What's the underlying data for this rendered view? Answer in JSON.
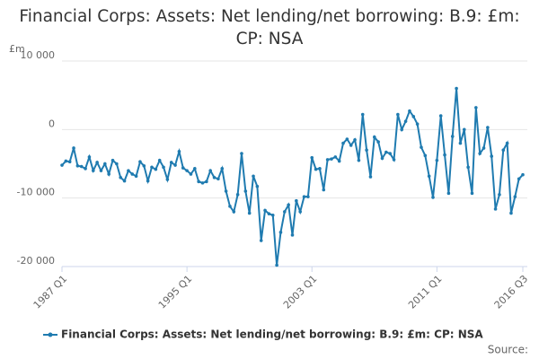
{
  "chart_data": {
    "type": "line",
    "title": "Financial Corps: Assets: Net lending/net borrowing: B.9: £m: CP: NSA",
    "y_unit": "£m",
    "source": "Source:",
    "categories": [
      "1987 Q1",
      null,
      null,
      null,
      null,
      null,
      null,
      null,
      null,
      null,
      null,
      null,
      null,
      null,
      null,
      null,
      null,
      null,
      null,
      null,
      null,
      null,
      null,
      null,
      null,
      null,
      null,
      null,
      null,
      null,
      null,
      null,
      "1995 Q1",
      null,
      null,
      null,
      null,
      null,
      null,
      null,
      null,
      null,
      null,
      null,
      null,
      null,
      null,
      null,
      null,
      null,
      null,
      null,
      null,
      null,
      null,
      null,
      null,
      null,
      null,
      null,
      null,
      null,
      null,
      null,
      "2003 Q1",
      null,
      null,
      null,
      null,
      null,
      null,
      null,
      null,
      null,
      null,
      null,
      null,
      null,
      null,
      null,
      null,
      null,
      null,
      null,
      null,
      null,
      null,
      null,
      null,
      null,
      null,
      null,
      null,
      null,
      null,
      null,
      "2011 Q1",
      null,
      null,
      null,
      null,
      null,
      null,
      null,
      null,
      null,
      null,
      null,
      null,
      null,
      null,
      null,
      null,
      null,
      null,
      null,
      null,
      null,
      "2016 Q3"
    ],
    "series": [
      {
        "name": "Financial Corps: Assets: Net lending/net borrowing: B.9: £m: CP: NSA",
        "color": "#1f7bb0",
        "values": [
          -5200,
          -4600,
          -4700,
          -2700,
          -5300,
          -5400,
          -5700,
          -4000,
          -6000,
          -4800,
          -6000,
          -5000,
          -6500,
          -4500,
          -5000,
          -7000,
          -7500,
          -6000,
          -6500,
          -6800,
          -4700,
          -5300,
          -7500,
          -5500,
          -5800,
          -4500,
          -5500,
          -7300,
          -4800,
          -5200,
          -3200,
          -5600,
          -6000,
          -6500,
          -5700,
          -7600,
          -7800,
          -7600,
          -6000,
          -7000,
          -7200,
          -5700,
          -9000,
          -11200,
          -12000,
          -9500,
          -3500,
          -9000,
          -12200,
          -6800,
          -8300,
          -16200,
          -11800,
          -12300,
          -12500,
          -19800,
          -15000,
          -12000,
          -11000,
          -15400,
          -10400,
          -12000,
          -9800,
          -9800,
          -4100,
          -5800,
          -5700,
          -8800,
          -4400,
          -4300,
          -4000,
          -4600,
          -2000,
          -1400,
          -2300,
          -1500,
          -4500,
          2200,
          -3000,
          -6900,
          -1100,
          -1800,
          -4200,
          -3300,
          -3500,
          -4400,
          2200,
          0,
          1200,
          2700,
          1900,
          800,
          -2600,
          -3800,
          -6800,
          -9900,
          -4500,
          2000,
          -3700,
          -9300,
          -1000,
          6000,
          -2000,
          0,
          -5500,
          -9300,
          3200,
          -3500,
          -2700,
          300,
          -3900,
          -11600,
          -9500,
          -3000,
          -2000,
          -12200,
          -9800,
          -7200,
          -6600
        ]
      }
    ],
    "ylim": [
      -20000,
      10000
    ],
    "yticks": [
      {
        "value": -20000,
        "label": "-20 000"
      },
      {
        "value": -10000,
        "label": "-10 000"
      },
      0,
      {
        "value": 10000,
        "label": "10 000"
      }
    ],
    "grid": true
  }
}
